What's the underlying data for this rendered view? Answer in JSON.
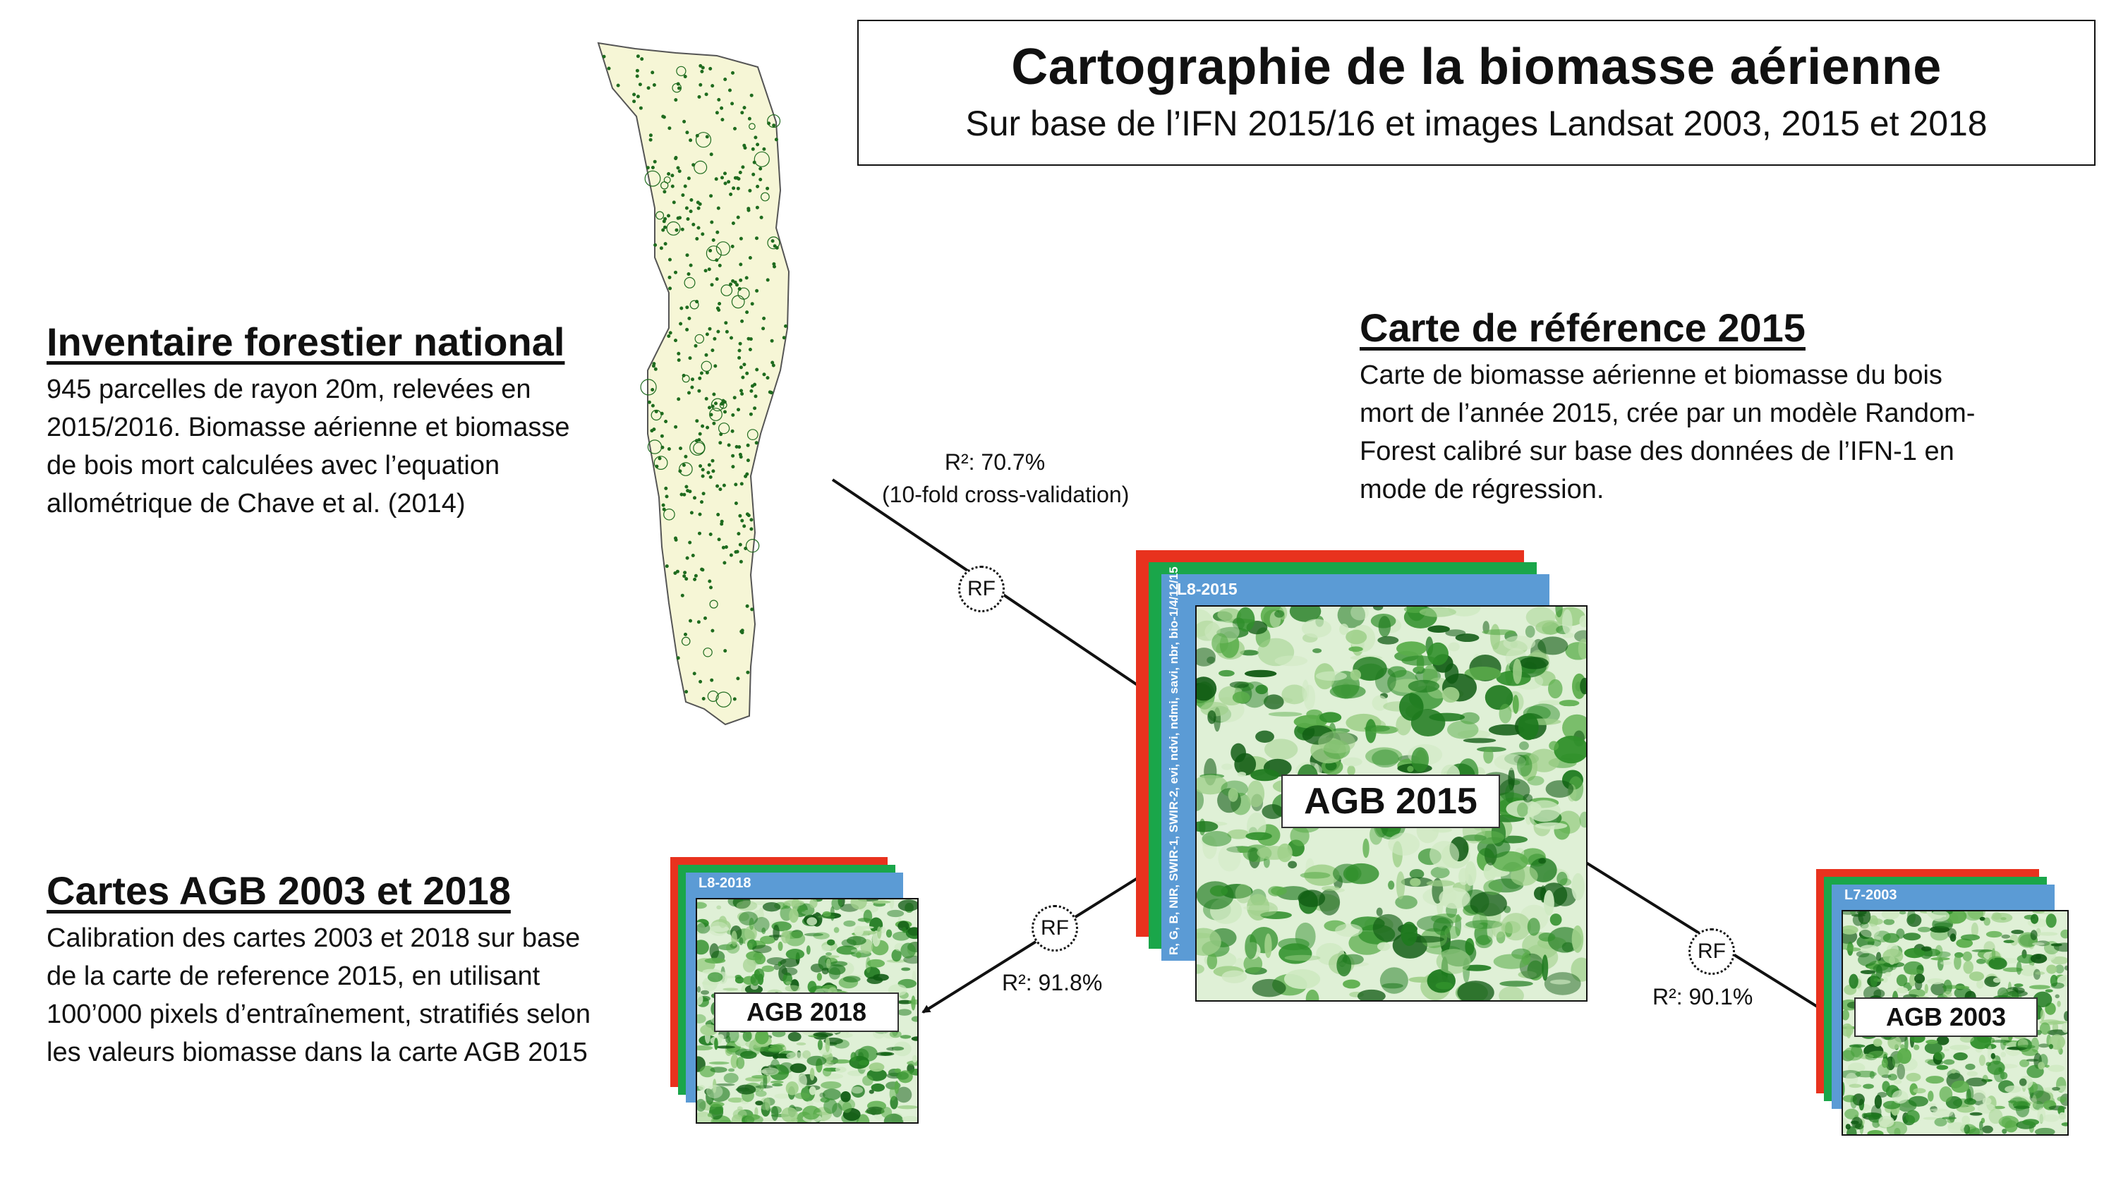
{
  "title": {
    "main": "Cartographie de la biomasse aérienne",
    "sub": "Sur base de l’IFN 2015/16 et images Landsat 2003, 2015 et 2018"
  },
  "inventory": {
    "heading": "Inventaire forestier national",
    "lines": [
      "945 parcelles de rayon 20m, relevées en",
      "2015/2016. Biomasse aérienne et biomasse",
      "de bois mort calculées avec l’equation",
      "allométrique de Chave et al. (2014)"
    ]
  },
  "reference": {
    "heading": "Carte de référence 2015",
    "lines": [
      "Carte de biomasse aérienne et  biomasse du bois",
      "mort de l’année 2015, crée par un modèle Random-",
      "Forest calibré sur base des données de l’IFN-1 en",
      "mode de régression."
    ]
  },
  "agb_maps": {
    "heading": "Cartes AGB 2003 et 2018",
    "lines": [
      "Calibration des cartes 2003 et 2018 sur base",
      "de la carte de reference 2015, en utilisant",
      "100’000 pixels d’entraînement, stratifiés selon",
      "les valeurs biomasse dans la carte AGB 2015"
    ]
  },
  "stats": {
    "main_r2": "R²: 70.7%",
    "main_cv": "(10-fold cross-validation)",
    "r2_2018": "R²: 91.8%",
    "r2_2003": "R²: 90.1%"
  },
  "rf_label": "RF",
  "stacks": {
    "s2015": {
      "sensor": "L8-2015",
      "bands": "R, G, B, NIR, SWIR-1, SWIR-2, evi, ndvi, ndmi, savi, nbr, bio-1/4/12/15",
      "label": "AGB 2015"
    },
    "s2018": {
      "sensor": "L8-2018",
      "label": "AGB 2018"
    },
    "s2003": {
      "sensor": "L7-2003",
      "label": "AGB 2003"
    }
  },
  "colors": {
    "red_layer": "#e8321e",
    "green_layer": "#1aa64a",
    "blue_layer": "#5b9bd5",
    "forest_dark": "#1e6b1e",
    "map_fill": "#f6f6d6"
  }
}
